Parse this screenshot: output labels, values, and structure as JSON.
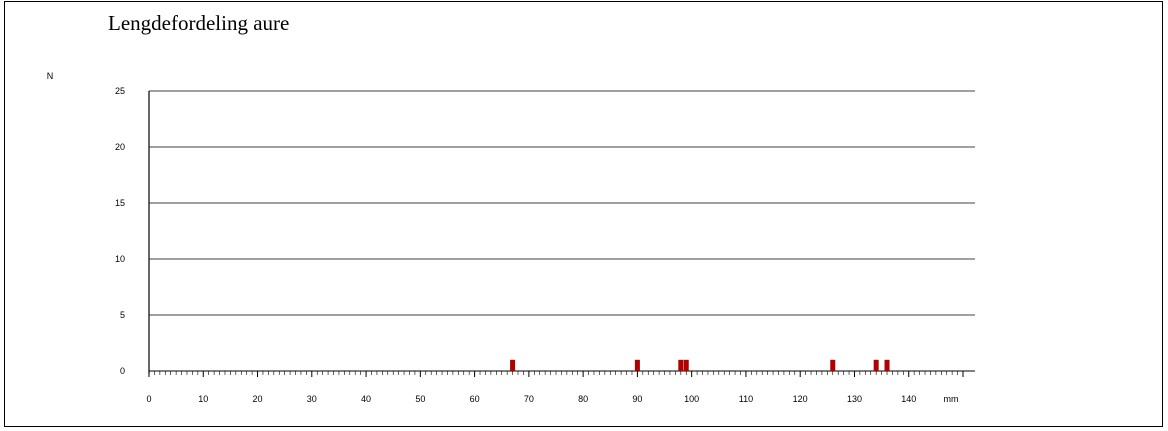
{
  "chart_data": {
    "type": "bar",
    "title": "Lengdefordeling aure",
    "ylabel": "N",
    "xlabel": "mm",
    "ylim": [
      0,
      25
    ],
    "xlim": [
      0,
      150
    ],
    "yticks": [
      0,
      5,
      10,
      15,
      20,
      25
    ],
    "xticks": [
      0,
      10,
      20,
      30,
      40,
      50,
      60,
      70,
      80,
      90,
      100,
      110,
      120,
      130,
      140
    ],
    "grid": true,
    "bar_color": "#b00000",
    "bars": [
      {
        "x": 67,
        "value": 1
      },
      {
        "x": 90,
        "value": 1
      },
      {
        "x": 98,
        "value": 1
      },
      {
        "x": 99,
        "value": 1
      },
      {
        "x": 126,
        "value": 1
      },
      {
        "x": 134,
        "value": 1
      },
      {
        "x": 136,
        "value": 1
      }
    ]
  }
}
